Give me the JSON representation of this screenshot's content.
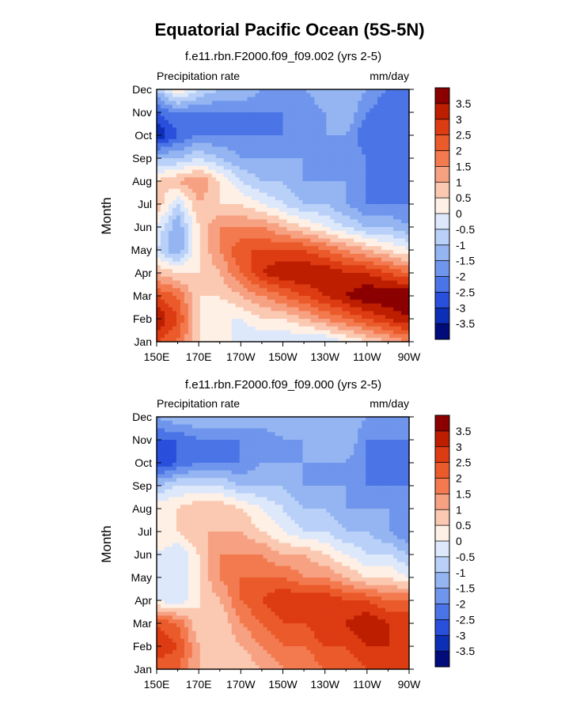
{
  "title": "Equatorial Pacific Ocean (5S-5N)",
  "colorbar": {
    "levels": [
      "3.5",
      "3",
      "2.5",
      "2",
      "1.5",
      "1",
      "0.5",
      "0",
      "-0.5",
      "-1",
      "-1.5",
      "-2",
      "-2.5",
      "-3",
      "-3.5"
    ],
    "colors": [
      "#8b0000",
      "#bd1e00",
      "#dd3b12",
      "#ea5a2a",
      "#f37a4f",
      "#f7a183",
      "#fbc9b1",
      "#fff0e6",
      "#dde8fb",
      "#b9d0f8",
      "#94b5f2",
      "#6f95ec",
      "#4b74e6",
      "#2a4fdc",
      "#0c2fb6",
      "#000c7a"
    ]
  },
  "chart_data": [
    {
      "type": "heatmap",
      "title": "f.e11.rbn.F2000.f09_f09.002 (yrs 2-5)",
      "left_label": "Precipitation rate",
      "right_label": "mm/day",
      "xlabel": "",
      "ylabel": "Month",
      "x_ticks": [
        "150E",
        "170E",
        "170W",
        "150W",
        "130W",
        "110W",
        "90W"
      ],
      "y_ticks": [
        "Jan",
        "Feb",
        "Mar",
        "Apr",
        "May",
        "Jun",
        "Jul",
        "Aug",
        "Sep",
        "Oct",
        "Nov",
        "Dec"
      ],
      "xlim": [
        150,
        270
      ],
      "x": [
        150,
        160,
        170,
        180,
        190,
        200,
        210,
        220,
        230,
        240,
        250,
        260,
        270
      ],
      "y": [
        "Jan",
        "Feb",
        "Mar",
        "Apr",
        "May",
        "Jun",
        "Jul",
        "Aug",
        "Sep",
        "Oct",
        "Nov",
        "Dec"
      ],
      "values": [
        [
          2.5,
          2.0,
          0.5,
          0.5,
          -0.5,
          -0.5,
          -0.5,
          -0.5,
          -0.5,
          0.0,
          0.5,
          1.0,
          1.5
        ],
        [
          3.5,
          2.5,
          0.5,
          0.0,
          0.0,
          0.5,
          0.5,
          1.0,
          1.5,
          2.0,
          2.5,
          3.0,
          3.5
        ],
        [
          2.5,
          2.0,
          0.5,
          0.5,
          1.0,
          1.5,
          2.0,
          2.5,
          3.0,
          3.5,
          4.0,
          4.0,
          4.0
        ],
        [
          1.0,
          0.5,
          0.5,
          1.0,
          2.0,
          3.0,
          3.5,
          3.5,
          3.5,
          3.0,
          3.0,
          2.5,
          2.0
        ],
        [
          -0.5,
          -1.5,
          0.5,
          1.5,
          2.5,
          2.5,
          2.5,
          2.5,
          2.0,
          1.5,
          1.0,
          0.5,
          0.0
        ],
        [
          0.0,
          -1.5,
          0.5,
          1.5,
          1.5,
          1.5,
          1.0,
          0.5,
          0.0,
          -0.5,
          -1.0,
          -1.0,
          -1.5
        ],
        [
          1.0,
          -0.5,
          1.0,
          0.5,
          0.5,
          0.0,
          -0.5,
          -1.0,
          -1.0,
          -1.5,
          -2.0,
          -2.0,
          -2.0
        ],
        [
          0.5,
          1.0,
          1.5,
          0.5,
          -0.5,
          -1.0,
          -1.0,
          -1.5,
          -1.5,
          -1.5,
          -2.0,
          -2.0,
          -2.0
        ],
        [
          -1.0,
          -1.0,
          -0.5,
          -1.0,
          -1.5,
          -1.5,
          -1.5,
          -1.5,
          -1.5,
          -1.5,
          -2.0,
          -2.0,
          -2.0
        ],
        [
          -3.5,
          -2.5,
          -2.0,
          -2.0,
          -2.0,
          -2.0,
          -2.0,
          -1.5,
          -1.5,
          -1.5,
          -2.5,
          -2.5,
          -2.0
        ],
        [
          -2.5,
          -2.0,
          -2.0,
          -2.0,
          -2.0,
          -2.0,
          -2.0,
          -2.0,
          -1.5,
          -1.0,
          -2.0,
          -2.5,
          -2.0
        ],
        [
          -1.0,
          0.5,
          -0.5,
          -1.0,
          -1.0,
          -1.5,
          -1.5,
          -1.5,
          -1.0,
          -1.0,
          -1.5,
          -2.0,
          -2.0
        ]
      ]
    },
    {
      "type": "heatmap",
      "title": "f.e11.rbn.F2000.f09_f09.000 (yrs 2-5)",
      "left_label": "Precipitation rate",
      "right_label": "mm/day",
      "xlabel": "",
      "ylabel": "Month",
      "x_ticks": [
        "150E",
        "170E",
        "170W",
        "150W",
        "130W",
        "110W",
        "90W"
      ],
      "y_ticks": [
        "Jan",
        "Feb",
        "Mar",
        "Apr",
        "May",
        "Jun",
        "Jul",
        "Aug",
        "Sep",
        "Oct",
        "Nov",
        "Dec"
      ],
      "xlim": [
        150,
        270
      ],
      "x": [
        150,
        160,
        170,
        180,
        190,
        200,
        210,
        220,
        230,
        240,
        250,
        260,
        270
      ],
      "y": [
        "Jan",
        "Feb",
        "Mar",
        "Apr",
        "May",
        "Jun",
        "Jul",
        "Aug",
        "Sep",
        "Oct",
        "Nov",
        "Dec"
      ],
      "values": [
        [
          2.0,
          2.0,
          1.0,
          0.5,
          0.5,
          1.0,
          1.5,
          1.5,
          2.0,
          2.0,
          2.5,
          2.5,
          2.5
        ],
        [
          3.0,
          2.5,
          1.0,
          0.5,
          1.0,
          1.5,
          2.0,
          2.0,
          2.5,
          2.5,
          3.0,
          3.0,
          3.0
        ],
        [
          2.5,
          2.0,
          0.5,
          0.5,
          1.5,
          2.0,
          2.5,
          2.5,
          3.0,
          3.0,
          3.5,
          3.0,
          3.0
        ],
        [
          0.0,
          -0.5,
          0.5,
          1.0,
          2.0,
          2.5,
          3.0,
          3.0,
          3.0,
          2.5,
          2.5,
          2.0,
          2.0
        ],
        [
          -0.5,
          -0.5,
          0.5,
          1.5,
          2.0,
          2.0,
          2.0,
          1.5,
          1.5,
          1.0,
          0.5,
          0.5,
          0.0
        ],
        [
          0.0,
          -0.5,
          0.5,
          1.5,
          1.5,
          1.5,
          1.0,
          1.0,
          0.5,
          0.0,
          -0.5,
          -0.5,
          -1.0
        ],
        [
          0.5,
          0.5,
          1.0,
          1.0,
          1.0,
          0.5,
          0.0,
          -0.5,
          -0.5,
          -1.0,
          -1.0,
          -1.5,
          -2.0
        ],
        [
          0.5,
          0.5,
          1.0,
          1.0,
          0.5,
          0.0,
          -0.5,
          -1.0,
          -1.0,
          -1.5,
          -1.5,
          -1.5,
          -2.0
        ],
        [
          -1.0,
          -0.5,
          -0.5,
          -0.5,
          -1.0,
          -1.0,
          -1.0,
          -1.5,
          -1.5,
          -1.5,
          -2.0,
          -2.0,
          -2.0
        ],
        [
          -3.0,
          -2.5,
          -2.0,
          -2.0,
          -2.0,
          -1.5,
          -1.5,
          -1.5,
          -1.5,
          -1.5,
          -2.0,
          -2.0,
          -2.0
        ],
        [
          -2.5,
          -2.5,
          -2.0,
          -2.0,
          -2.0,
          -2.0,
          -1.5,
          -1.5,
          -1.0,
          -1.0,
          -2.0,
          -2.0,
          -2.0
        ],
        [
          -1.5,
          -1.0,
          -1.0,
          -1.0,
          -1.0,
          -1.0,
          -1.0,
          -1.0,
          -1.0,
          -1.0,
          -1.5,
          -1.5,
          -1.5
        ]
      ]
    }
  ]
}
